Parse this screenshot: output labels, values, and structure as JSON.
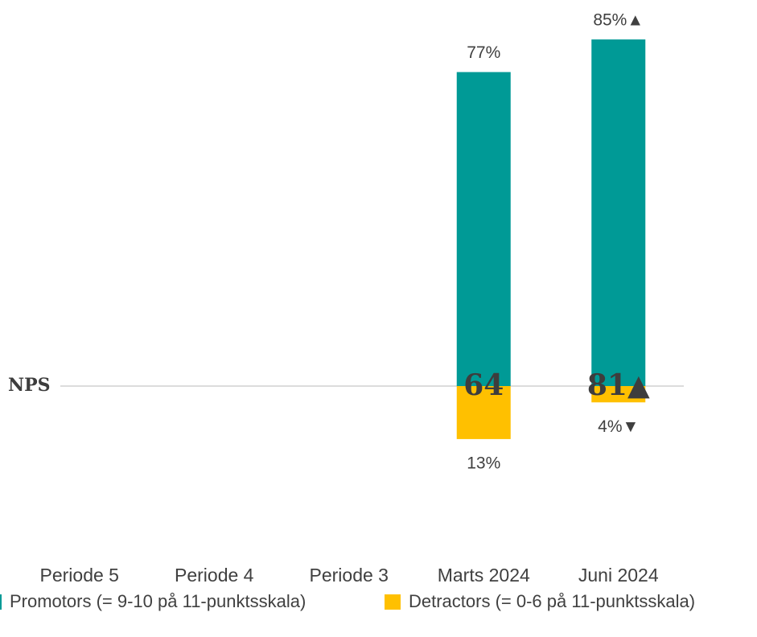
{
  "chart_data": {
    "type": "diverging_bar",
    "categories": [
      "Periode 5",
      "Periode 4",
      "Periode 3",
      "Marts 2024",
      "Juni 2024"
    ],
    "series": [
      {
        "name": "Promotors (= 9-10 på 11-punktsskala)",
        "color": "#009a96",
        "values": [
          null,
          null,
          null,
          77,
          85
        ],
        "value_labels": [
          null,
          null,
          null,
          "77%",
          "85%▲"
        ]
      },
      {
        "name": "Detractors (= 0-6 på 11-punktsskala)",
        "color": "#ffc000",
        "values": [
          null,
          null,
          null,
          13,
          4
        ],
        "value_labels": [
          null,
          null,
          null,
          "13%",
          "4%▼"
        ]
      }
    ],
    "nps": {
      "name": "NPS",
      "values": [
        null,
        null,
        null,
        64,
        81
      ],
      "value_labels": [
        null,
        null,
        null,
        "64",
        "81▲"
      ]
    }
  }
}
